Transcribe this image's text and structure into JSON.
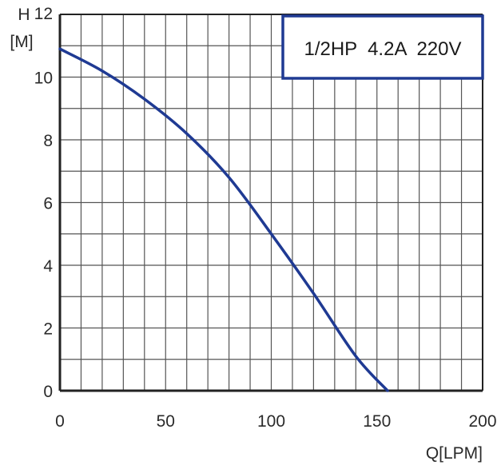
{
  "chart_data": {
    "type": "line",
    "title": "",
    "annotation": "1/2HP  4.2A  220V",
    "ylabel_symbol": "H",
    "ylabel_unit": "[M]",
    "xlabel": "Q[LPM]",
    "xlim": [
      0,
      200
    ],
    "ylim": [
      0,
      12
    ],
    "x_ticks": [
      "0",
      "50",
      "100",
      "150",
      "200"
    ],
    "y_ticks": [
      "0",
      "2",
      "4",
      "6",
      "8",
      "10",
      "12"
    ],
    "grid": true,
    "grid_x_step": 10,
    "grid_y_step": 1,
    "line_color": "#1f3a93",
    "series": [
      {
        "x": [
          0,
          20,
          40,
          60,
          80,
          100,
          120,
          140,
          155
        ],
        "values": [
          10.9,
          10.2,
          9.3,
          8.2,
          6.8,
          5.0,
          3.1,
          1.1,
          0
        ]
      }
    ]
  }
}
